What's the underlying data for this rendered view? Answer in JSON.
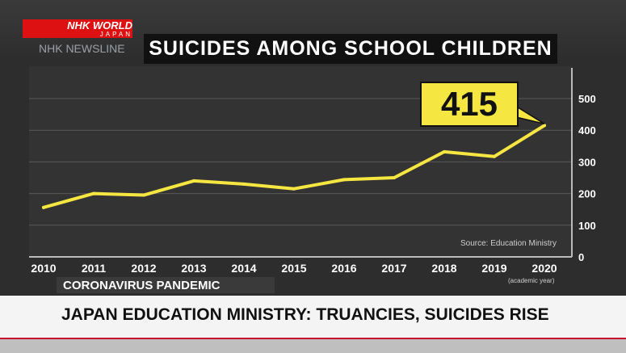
{
  "broadcaster": {
    "brand": "NHK WORLD",
    "sub": "JAPAN",
    "channel": "NHK NEWSLINE"
  },
  "topic_label": "CORONAVIRUS PANDEMIC",
  "headline": "JAPAN EDUCATION MINISTRY: TRUANCIES, SUICIDES RISE",
  "callout_value": "415",
  "colors": {
    "line": "#f5e642",
    "callout": "#f5e642",
    "background": "#2d2d2d",
    "headline_bar": "#f4f4f4",
    "accent_red": "#c8102e"
  },
  "chart_data": {
    "type": "line",
    "title": "SUICIDES AMONG SCHOOL CHILDREN",
    "source": "Source: Education Ministry",
    "x_unit": "(academic year)",
    "x": [
      2010,
      2011,
      2012,
      2013,
      2014,
      2015,
      2016,
      2017,
      2018,
      2019,
      2020
    ],
    "x_tick_labels": [
      "2010",
      "2011",
      "2012",
      "2013",
      "2014",
      "2015",
      "2016",
      "2017",
      "2018",
      "2019",
      "2020"
    ],
    "series": [
      {
        "values": [
          156,
          200,
          195,
          240,
          230,
          215,
          244,
          250,
          332,
          317,
          415
        ]
      }
    ],
    "y_ticks": [
      0,
      100,
      200,
      300,
      400,
      500
    ],
    "ylim": [
      0,
      500
    ],
    "xlabel": "",
    "ylabel": "",
    "grid": true,
    "legend": "none",
    "annotation": {
      "x": 2020,
      "value": "415"
    }
  }
}
